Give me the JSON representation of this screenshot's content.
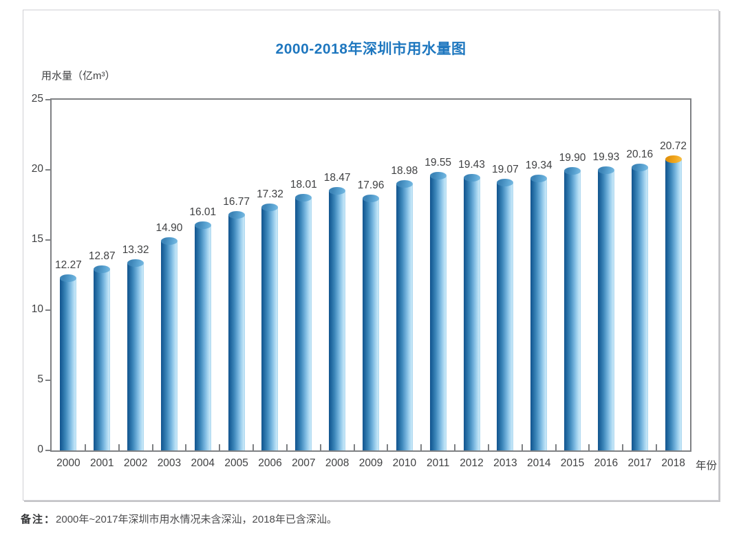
{
  "page": {
    "note_label": "备注：",
    "note_text": "2000年~2017年深圳市用水情况未含深汕，2018年已含深汕。"
  },
  "chart_data": {
    "type": "bar",
    "title": "2000-2018年深圳市用水量图",
    "ylabel": "用水量（亿m³）",
    "xlabel": "年份",
    "categories": [
      "2000",
      "2001",
      "2002",
      "2003",
      "2004",
      "2005",
      "2006",
      "2007",
      "2008",
      "2009",
      "2010",
      "2011",
      "2012",
      "2013",
      "2014",
      "2015",
      "2016",
      "2017",
      "2018"
    ],
    "values": [
      12.27,
      12.87,
      13.32,
      14.9,
      16.01,
      16.77,
      17.32,
      18.01,
      18.47,
      17.96,
      18.98,
      19.55,
      19.43,
      19.07,
      19.34,
      19.9,
      19.93,
      20.16,
      20.72
    ],
    "ylim": [
      0,
      25
    ],
    "yticks": [
      0,
      5,
      10,
      15,
      20,
      25
    ],
    "grid": false,
    "legend": false,
    "bar_style": "cylinder-3d",
    "highlight": {
      "index": 18,
      "reason": "2018 bar has orange cap"
    },
    "colors": {
      "title": "#1E77BF",
      "bar_blue_dark": "#14568F",
      "bar_blue_light": "#C9E8F8",
      "cap_blue": "#4C97C9",
      "cap_orange": "#F0A526",
      "axis": "#7E8083",
      "text": "#3F4042"
    }
  }
}
